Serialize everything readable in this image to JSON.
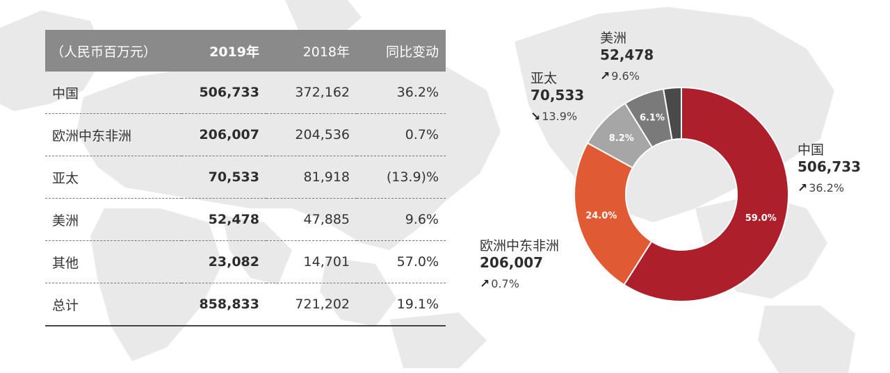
{
  "table": {
    "headers": [
      "（人民币百万元）",
      "2019年",
      "2018年",
      "同比变动"
    ],
    "rows": [
      {
        "region": "中国",
        "y2019": "506,733",
        "y2018": "372,162",
        "yoy": "36.2%"
      },
      {
        "region": "欧洲中东非洲",
        "y2019": "206,007",
        "y2018": "204,536",
        "yoy": "0.7%"
      },
      {
        "region": "亚太",
        "y2019": "70,533",
        "y2018": "81,918",
        "yoy": "(13.9)%"
      },
      {
        "region": "美洲",
        "y2019": "52,478",
        "y2018": "47,885",
        "yoy": "9.6%"
      },
      {
        "region": "其他",
        "y2019": "23,082",
        "y2018": "14,701",
        "yoy": "57.0%"
      },
      {
        "region": "总计",
        "y2019": "858,833",
        "y2018": "721,202",
        "yoy": "19.1%"
      }
    ]
  },
  "callouts": {
    "china": {
      "name": "中国",
      "value": "506,733",
      "arrow": "↗",
      "change": "36.2%"
    },
    "emea": {
      "name": "欧洲中东非洲",
      "value": "206,007",
      "arrow": "↗",
      "change": "0.7%"
    },
    "apac": {
      "name": "亚太",
      "value": "70,533",
      "arrow": "↘",
      "change": "13.9%"
    },
    "americas": {
      "name": "美洲",
      "value": "52,478",
      "arrow": "↗",
      "change": "9.6%"
    }
  },
  "chart_data": {
    "type": "pie",
    "variant": "donut",
    "title": "",
    "categories": [
      "中国",
      "欧洲中东非洲",
      "亚太",
      "美洲",
      "其他"
    ],
    "values": [
      506733,
      206007,
      70533,
      52478,
      23082
    ],
    "percent_labels": [
      "59.0%",
      "24.0%",
      "8.2%",
      "6.1%",
      ""
    ],
    "colors": [
      "#ad1f2b",
      "#e05a33",
      "#a6a6a6",
      "#7a7a7a",
      "#4a4a4a"
    ],
    "start_angle_deg": 0,
    "direction": "clockwise",
    "legend": "none"
  },
  "colors": {
    "header_bg": "#8a8a8a",
    "map_land": "#e9e9e9",
    "text": "#333333"
  },
  "background_icon": "world-map-icon"
}
